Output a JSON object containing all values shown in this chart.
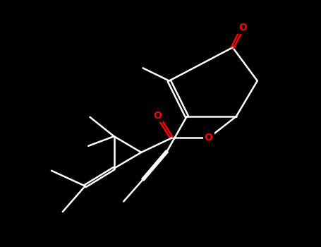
{
  "bg_color": "#000000",
  "line_color": "#ffffff",
  "atom_O_color": "#ff0000",
  "lw": 1.8,
  "fig_width": 4.55,
  "fig_height": 3.5,
  "dpi": 100,
  "xlim": [
    0,
    10
  ],
  "ylim": [
    0,
    7.7
  ]
}
